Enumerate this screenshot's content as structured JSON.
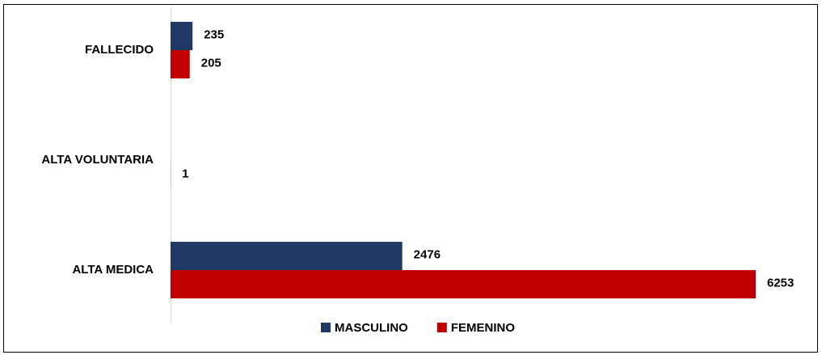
{
  "chart_data": {
    "type": "hbar",
    "categories": [
      "FALLECIDO",
      "ALTA VOLUNTARIA",
      "ALTA MEDICA"
    ],
    "series": [
      {
        "name": "MASCULINO",
        "color": "#203864",
        "values": [
          235,
          null,
          2476
        ]
      },
      {
        "name": "FEMENINO",
        "color": "#c00000",
        "values": [
          205,
          1,
          6253
        ]
      }
    ],
    "legend": "bottom"
  }
}
